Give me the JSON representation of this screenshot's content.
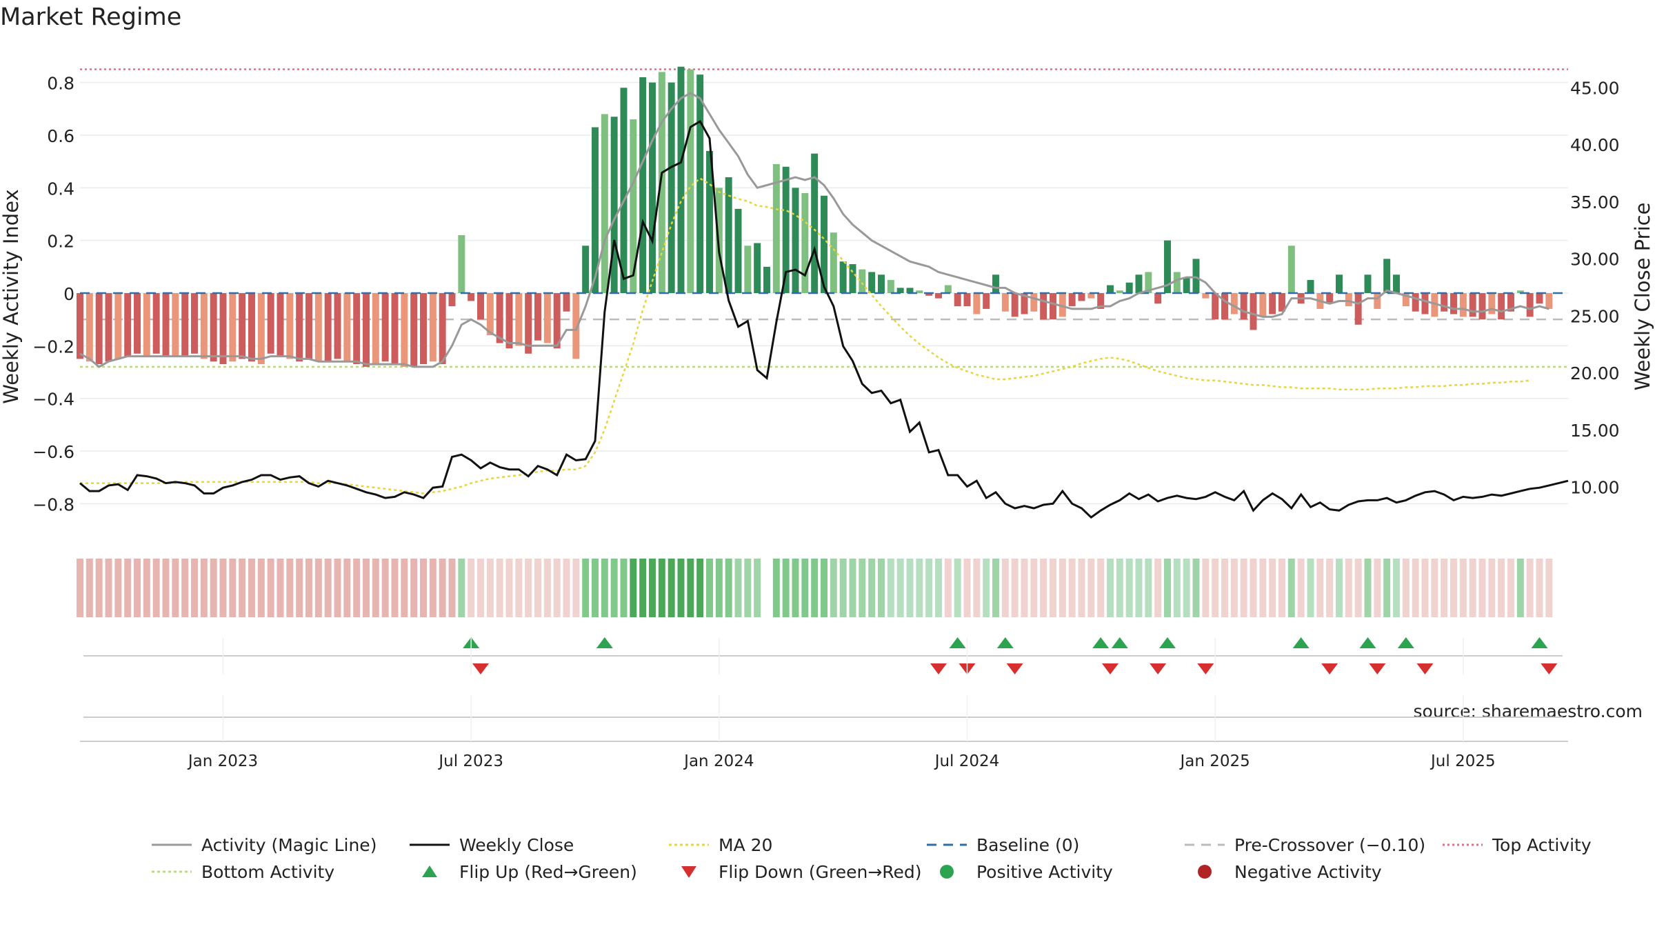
{
  "chart_data": {
    "type": "bar",
    "title": "Market Regime",
    "ylabel_left": "Weekly Activity Index",
    "ylabel_right": "Weekly Close Price",
    "source": "source: sharemaestro.com",
    "ylim_left": [
      -0.93,
      0.93
    ],
    "ylim_right": [
      5.5,
      48.4
    ],
    "yticks_left": [
      {
        "v": 0.8,
        "label": "0.8"
      },
      {
        "v": 0.6,
        "label": "0.6"
      },
      {
        "v": 0.4,
        "label": "0.4"
      },
      {
        "v": 0.2,
        "label": "0.2"
      },
      {
        "v": 0.0,
        "label": "0"
      },
      {
        "v": -0.2,
        "label": "−0.2"
      },
      {
        "v": -0.4,
        "label": "−0.4"
      },
      {
        "v": -0.6,
        "label": "−0.6"
      },
      {
        "v": -0.8,
        "label": "−0.8"
      }
    ],
    "yticks_right": [
      {
        "v": 45,
        "label": "45.00"
      },
      {
        "v": 40,
        "label": "40.00"
      },
      {
        "v": 35,
        "label": "35.00"
      },
      {
        "v": 30,
        "label": "30.00"
      },
      {
        "v": 25,
        "label": "25.00"
      },
      {
        "v": 20,
        "label": "20.00"
      },
      {
        "v": 15,
        "label": "15.00"
      },
      {
        "v": 10,
        "label": "10.00"
      }
    ],
    "xticks": [
      {
        "week": 15,
        "label": "Jan 2023"
      },
      {
        "week": 41,
        "label": "Jul 2023"
      },
      {
        "week": 67,
        "label": "Jan 2024"
      },
      {
        "week": 93,
        "label": "Jul 2024"
      },
      {
        "week": 119,
        "label": "Jan 2025"
      },
      {
        "week": 145,
        "label": "Jul 2025"
      }
    ],
    "x_week_range": [
      0,
      156
    ],
    "reference_lines": {
      "top_activity": 0.85,
      "bottom_activity": -0.28,
      "pre_crossover": -0.1,
      "baseline": 0
    },
    "activity": [
      -0.25,
      -0.26,
      -0.27,
      -0.26,
      -0.25,
      -0.24,
      -0.23,
      -0.24,
      -0.23,
      -0.24,
      -0.24,
      -0.24,
      -0.23,
      -0.25,
      -0.26,
      -0.27,
      -0.26,
      -0.25,
      -0.26,
      -0.27,
      -0.23,
      -0.24,
      -0.25,
      -0.26,
      -0.25,
      -0.26,
      -0.26,
      -0.25,
      -0.26,
      -0.27,
      -0.28,
      -0.27,
      -0.26,
      -0.27,
      -0.28,
      -0.28,
      -0.27,
      -0.26,
      -0.27,
      -0.05,
      0.22,
      -0.03,
      -0.1,
      -0.16,
      -0.19,
      -0.21,
      -0.2,
      -0.23,
      -0.18,
      -0.19,
      -0.21,
      -0.07,
      -0.25,
      0.18,
      0.63,
      0.68,
      0.67,
      0.78,
      0.66,
      0.82,
      0.8,
      0.84,
      0.8,
      0.86,
      0.85,
      0.83,
      0.54,
      0.4,
      0.44,
      0.32,
      0.18,
      0.19,
      0.1,
      0.49,
      0.48,
      0.4,
      0.38,
      0.53,
      0.37,
      0.23,
      0.12,
      0.11,
      0.09,
      0.08,
      0.07,
      0.05,
      0.02,
      0.02,
      0.01,
      -0.01,
      -0.02,
      0.03,
      -0.05,
      -0.05,
      -0.08,
      -0.06,
      0.07,
      -0.07,
      -0.09,
      -0.08,
      -0.07,
      -0.1,
      -0.1,
      -0.09,
      -0.05,
      -0.03,
      -0.02,
      -0.06,
      0.03,
      0.01,
      0.04,
      0.07,
      0.08,
      -0.04,
      0.2,
      0.08,
      0.06,
      0.13,
      -0.02,
      -0.1,
      -0.1,
      -0.08,
      -0.1,
      -0.14,
      -0.09,
      -0.08,
      -0.07,
      0.18,
      -0.04,
      0.05,
      -0.06,
      -0.04,
      0.07,
      -0.05,
      -0.12,
      0.07,
      -0.06,
      0.13,
      0.07,
      -0.05,
      -0.07,
      -0.08,
      -0.09,
      -0.07,
      -0.08,
      -0.09,
      -0.09,
      -0.1,
      -0.08,
      -0.1,
      -0.07,
      0.01,
      -0.09,
      -0.04,
      -0.06
    ],
    "magic_line": [
      -0.23,
      -0.25,
      -0.28,
      -0.26,
      -0.25,
      -0.24,
      -0.24,
      -0.24,
      -0.24,
      -0.24,
      -0.24,
      -0.24,
      -0.24,
      -0.24,
      -0.24,
      -0.24,
      -0.24,
      -0.24,
      -0.25,
      -0.25,
      -0.24,
      -0.24,
      -0.24,
      -0.25,
      -0.25,
      -0.26,
      -0.26,
      -0.26,
      -0.26,
      -0.26,
      -0.27,
      -0.27,
      -0.27,
      -0.27,
      -0.27,
      -0.28,
      -0.28,
      -0.28,
      -0.26,
      -0.2,
      -0.12,
      -0.1,
      -0.12,
      -0.15,
      -0.17,
      -0.19,
      -0.19,
      -0.2,
      -0.2,
      -0.2,
      -0.2,
      -0.14,
      -0.14,
      -0.05,
      0.06,
      0.2,
      0.28,
      0.35,
      0.42,
      0.5,
      0.58,
      0.65,
      0.7,
      0.74,
      0.76,
      0.74,
      0.68,
      0.62,
      0.57,
      0.52,
      0.45,
      0.4,
      0.41,
      0.42,
      0.43,
      0.44,
      0.43,
      0.44,
      0.41,
      0.36,
      0.3,
      0.26,
      0.23,
      0.2,
      0.18,
      0.16,
      0.14,
      0.12,
      0.11,
      0.1,
      0.08,
      0.07,
      0.06,
      0.05,
      0.04,
      0.03,
      0.02,
      0.02,
      0.0,
      -0.01,
      -0.02,
      -0.03,
      -0.04,
      -0.05,
      -0.06,
      -0.06,
      -0.06,
      -0.05,
      -0.05,
      -0.03,
      -0.02,
      0.0,
      0.01,
      0.02,
      0.03,
      0.05,
      0.06,
      0.06,
      0.04,
      0.0,
      -0.03,
      -0.05,
      -0.07,
      -0.08,
      -0.09,
      -0.09,
      -0.08,
      -0.02,
      -0.02,
      -0.02,
      -0.03,
      -0.04,
      -0.03,
      -0.03,
      -0.04,
      -0.02,
      -0.02,
      0.01,
      0.0,
      -0.01,
      -0.02,
      -0.03,
      -0.04,
      -0.05,
      -0.06,
      -0.06,
      -0.07,
      -0.07,
      -0.06,
      -0.07,
      -0.06,
      -0.05,
      -0.06,
      -0.05,
      -0.06
    ],
    "weekly_close": [
      10.3,
      9.6,
      9.6,
      10.1,
      10.2,
      9.7,
      11.0,
      10.9,
      10.7,
      10.3,
      10.4,
      10.3,
      10.1,
      9.4,
      9.4,
      9.9,
      10.1,
      10.4,
      10.6,
      11.0,
      11.0,
      10.6,
      10.8,
      10.9,
      10.3,
      10.0,
      10.5,
      10.3,
      10.1,
      9.8,
      9.5,
      9.3,
      9.0,
      9.1,
      9.5,
      9.3,
      9.0,
      9.9,
      10.0,
      12.6,
      12.8,
      12.3,
      11.6,
      12.1,
      11.7,
      11.5,
      11.5,
      10.9,
      11.8,
      11.5,
      11.0,
      12.8,
      12.3,
      12.4,
      14.0,
      25.3,
      31.6,
      28.2,
      28.5,
      33.2,
      31.5,
      37.5,
      38.0,
      38.4,
      41.5,
      42.0,
      40.5,
      30.5,
      26.3,
      24.0,
      24.5,
      20.2,
      19.5,
      24.4,
      28.8,
      29.0,
      28.5,
      30.8,
      27.5,
      25.8,
      22.3,
      21.0,
      19.0,
      18.2,
      18.4,
      17.3,
      17.6,
      14.8,
      15.6,
      13.0,
      13.2,
      11.0,
      11.0,
      10.0,
      10.5,
      9.0,
      9.5,
      8.5,
      8.1,
      8.3,
      8.1,
      8.4,
      8.5,
      9.6,
      8.5,
      8.1,
      7.3,
      7.9,
      8.4,
      8.8,
      9.4,
      8.9,
      9.3,
      8.7,
      9.0,
      9.2,
      9.0,
      8.9,
      9.1,
      9.5,
      9.1,
      8.8,
      9.6,
      7.9,
      8.8,
      9.4,
      8.9,
      8.1,
      9.3,
      8.2,
      8.6,
      8.0,
      7.9,
      8.4,
      8.7,
      8.8,
      8.8,
      9.0,
      8.6,
      8.8,
      9.2,
      9.5,
      9.6,
      9.3,
      8.8,
      9.1,
      9.0,
      9.1,
      9.3,
      9.2,
      9.4,
      9.6,
      9.8,
      9.9,
      10.1,
      10.3,
      10.5
    ],
    "ma20": [
      10.3,
      10.3,
      10.3,
      10.3,
      10.3,
      10.3,
      10.3,
      10.3,
      10.3,
      10.3,
      10.3,
      10.4,
      10.4,
      10.4,
      10.4,
      10.4,
      10.4,
      10.4,
      10.4,
      10.4,
      10.4,
      10.4,
      10.4,
      10.4,
      10.4,
      10.3,
      10.3,
      10.3,
      10.2,
      10.1,
      10.0,
      9.9,
      9.8,
      9.7,
      9.6,
      9.5,
      9.4,
      9.5,
      9.6,
      9.8,
      10.0,
      10.3,
      10.5,
      10.7,
      10.8,
      10.9,
      11.0,
      11.1,
      11.3,
      11.4,
      11.4,
      11.5,
      11.5,
      11.8,
      13.0,
      15.0,
      17.5,
      20.0,
      22.5,
      25.5,
      28.0,
      30.5,
      33.0,
      35.0,
      36.3,
      37.0,
      36.5,
      35.8,
      35.5,
      35.2,
      35.0,
      34.6,
      34.5,
      34.3,
      34.2,
      33.8,
      33.2,
      32.5,
      31.7,
      30.8,
      29.8,
      28.8,
      27.8,
      26.8,
      25.8,
      24.9,
      24.0,
      23.2,
      22.5,
      21.9,
      21.3,
      20.8,
      20.4,
      20.1,
      19.8,
      19.6,
      19.4,
      19.4,
      19.5,
      19.6,
      19.7,
      19.9,
      20.1,
      20.3,
      20.5,
      20.8,
      21.0,
      21.2,
      21.3,
      21.2,
      21.0,
      20.7,
      20.4,
      20.1,
      19.9,
      19.7,
      19.5,
      19.4,
      19.3,
      19.3,
      19.2,
      19.1,
      19.0,
      18.9,
      18.9,
      18.8,
      18.7,
      18.7,
      18.6,
      18.6,
      18.6,
      18.6,
      18.5,
      18.5,
      18.5,
      18.5,
      18.6,
      18.6,
      18.6,
      18.7,
      18.7,
      18.8,
      18.8,
      18.8,
      18.9,
      18.9,
      19.0,
      19.0,
      19.1,
      19.1,
      19.2,
      19.2,
      19.3
    ],
    "regime_band": [
      -1,
      -1,
      -1,
      -1,
      -1,
      -1,
      -1,
      -1,
      -1,
      -1,
      -1,
      -1,
      -1,
      -1,
      -1,
      -1,
      -1,
      -1,
      -1,
      -1,
      -1,
      -1,
      -1,
      -1,
      -1,
      -1,
      -1,
      -1,
      -1,
      -1,
      -1,
      -1,
      -1,
      -1,
      -1,
      -1,
      -1,
      -1,
      -1,
      -1,
      1,
      -0.6,
      -0.6,
      -0.6,
      -0.6,
      -0.6,
      -0.6,
      -0.6,
      -0.6,
      -0.6,
      -0.6,
      -0.6,
      -0.6,
      2,
      2,
      2,
      2,
      2,
      3,
      3,
      3,
      3,
      3,
      3,
      3,
      3,
      2,
      2,
      2,
      1,
      1,
      1,
      0,
      2,
      2,
      2,
      2,
      2,
      2,
      1,
      1,
      1,
      1,
      1,
      1,
      0.5,
      0.5,
      0.5,
      0.5,
      0.5,
      0.5,
      -0.5,
      0.5,
      -0.5,
      -0.5,
      0.5,
      1,
      -0.5,
      -0.5,
      -0.5,
      -0.5,
      -0.5,
      -0.5,
      -0.5,
      -0.5,
      -0.5,
      -0.5,
      -0.5,
      0.5,
      0.5,
      0.5,
      0.5,
      0.5,
      -0.5,
      1,
      0.5,
      0.5,
      1,
      -0.5,
      -0.5,
      -0.5,
      -0.5,
      -0.5,
      -0.5,
      -0.5,
      -0.5,
      -0.5,
      1,
      -0.5,
      0.5,
      -0.5,
      -0.5,
      0.5,
      -0.5,
      -0.5,
      1,
      -0.5,
      1,
      0.5,
      -0.5,
      -0.5,
      -0.5,
      -0.5,
      -0.5,
      -0.5,
      -0.5,
      -0.5,
      -0.5,
      -0.5,
      -0.5,
      -0.5,
      1,
      -0.5,
      -0.5,
      -0.5
    ],
    "flip_up_weeks": [
      41,
      55,
      92,
      97,
      107,
      109,
      114,
      128,
      135,
      139,
      153
    ],
    "flip_down_weeks": [
      42,
      90,
      93,
      98,
      108,
      113,
      118,
      131,
      136,
      141,
      154
    ],
    "legend": [
      {
        "label": "Activity (Magic Line)",
        "kind": "line",
        "color": "#999999",
        "dash": ""
      },
      {
        "label": "Weekly Close",
        "kind": "line",
        "color": "#111111",
        "dash": ""
      },
      {
        "label": "MA 20",
        "kind": "line",
        "color": "#e7d53b",
        "dash": "4,4"
      },
      {
        "label": "Baseline (0)",
        "kind": "line",
        "color": "#2b6ea8",
        "dash": "14,10"
      },
      {
        "label": "Pre-Crossover (−0.10)",
        "kind": "line",
        "color": "#bbbbbb",
        "dash": "14,10"
      },
      {
        "label": "Top Activity",
        "kind": "line",
        "color": "#e06d80",
        "dash": "3,4"
      },
      {
        "label": "Bottom Activity",
        "kind": "line",
        "color": "#b7dc7e",
        "dash": "4,4"
      },
      {
        "label": "Flip Up (Red→Green)",
        "kind": "up",
        "color": "#2ca34f",
        "dash": ""
      },
      {
        "label": "Flip Down (Green→Red)",
        "kind": "down",
        "color": "#d62f2f",
        "dash": ""
      },
      {
        "label": "Positive Activity",
        "kind": "dot",
        "color": "#2ca34f",
        "dash": ""
      },
      {
        "label": "Negative Activity",
        "kind": "dot",
        "color": "#b22424",
        "dash": ""
      }
    ],
    "colors": {
      "bar_pos_strong": "#2e8b57",
      "bar_pos_light": "#7fbf7f",
      "bar_neg_strong": "#cd5c5c",
      "bar_neg_light": "#e9967a",
      "band_neg": "#e6b5b2",
      "band_neg_light": "#f0d2d0",
      "band_pos_1": "#b5dfc0",
      "band_pos_2": "#80c98a",
      "band_pos_3": "#4aa858"
    }
  }
}
